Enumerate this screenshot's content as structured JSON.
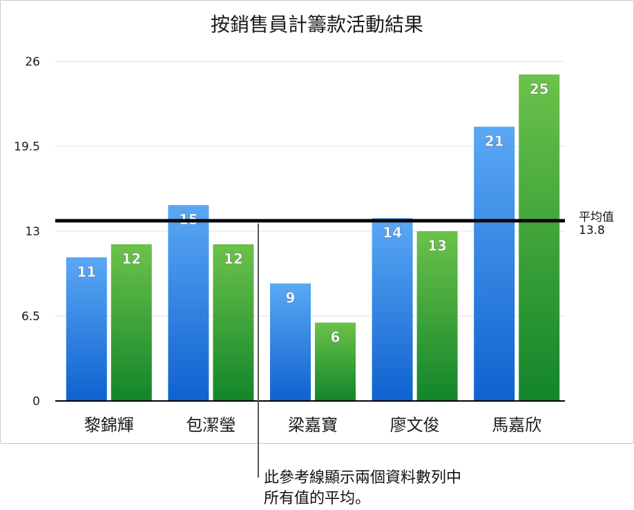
{
  "chart_data": {
    "type": "bar",
    "title": "按銷售員計籌款活動結果",
    "categories": [
      "黎錦輝",
      "包潔瑩",
      "梁嘉寶",
      "廖文俊",
      "馬嘉欣"
    ],
    "series": [
      {
        "values": [
          11,
          15,
          9,
          14,
          21
        ],
        "color": "#2f86e6"
      },
      {
        "values": [
          12,
          12,
          6,
          13,
          25
        ],
        "color": "#3aa83a"
      }
    ],
    "ylim": [
      0,
      26
    ],
    "yticks": [
      "0",
      "6.5",
      "13",
      "19.5",
      "26"
    ],
    "ytick_values": [
      0,
      6.5,
      13,
      19.5,
      26
    ],
    "grid": true,
    "reference_line": {
      "label": "平均值",
      "value_label": "13.8",
      "value": 13.8
    }
  },
  "annotation": {
    "line1": "此參考線顯示兩個資料數列中",
    "line2": "所有值的平均。"
  }
}
